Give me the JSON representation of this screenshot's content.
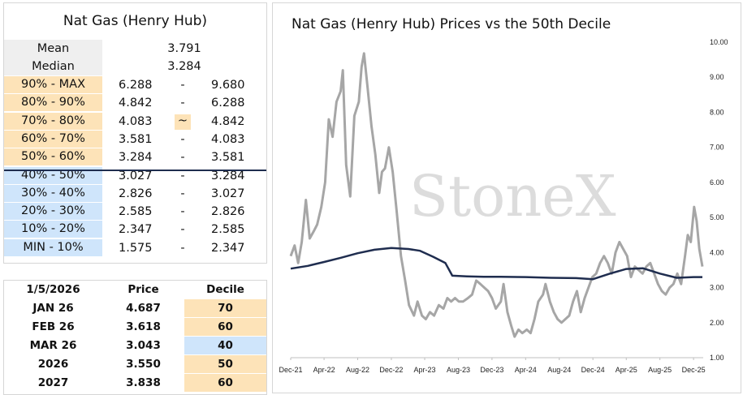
{
  "left_table": {
    "title": "Nat Gas (Henry Hub)",
    "stats": [
      {
        "label": "Mean",
        "value": "3.791"
      },
      {
        "label": "Median",
        "value": "3.284"
      }
    ],
    "deciles": [
      {
        "label": "90% - MAX",
        "low": "6.288",
        "sep": "-",
        "high": "9.680",
        "zone": "high"
      },
      {
        "label": "80% - 90%",
        "low": "4.842",
        "sep": "-",
        "high": "6.288",
        "zone": "high"
      },
      {
        "label": "70% - 80%",
        "low": "4.083",
        "sep": "~",
        "high": "4.842",
        "zone": "high"
      },
      {
        "label": "60% - 70%",
        "low": "3.581",
        "sep": "-",
        "high": "4.083",
        "zone": "high"
      },
      {
        "label": "50% - 60%",
        "low": "3.284",
        "sep": "-",
        "high": "3.581",
        "zone": "high"
      },
      {
        "label": "40% - 50%",
        "low": "3.027",
        "sep": "-",
        "high": "3.284",
        "zone": "low"
      },
      {
        "label": "30% - 40%",
        "low": "2.826",
        "sep": "-",
        "high": "3.027",
        "zone": "low"
      },
      {
        "label": "20% - 30%",
        "low": "2.585",
        "sep": "-",
        "high": "2.826",
        "zone": "low"
      },
      {
        "label": "10% - 20%",
        "low": "2.347",
        "sep": "-",
        "high": "2.585",
        "zone": "low"
      },
      {
        "label": "MIN - 10%",
        "low": "1.575",
        "sep": "-",
        "high": "2.347",
        "zone": "low"
      }
    ]
  },
  "bottom_table": {
    "headers": [
      "1/5/2026",
      "Price",
      "Decile"
    ],
    "rows": [
      {
        "contract": "JAN 26",
        "price": "4.687",
        "decile": "70",
        "zone": "high"
      },
      {
        "contract": "FEB 26",
        "price": "3.618",
        "decile": "60",
        "zone": "high"
      },
      {
        "contract": "MAR 26",
        "price": "3.043",
        "decile": "40",
        "zone": "low"
      },
      {
        "contract": "2026",
        "price": "3.550",
        "decile": "50",
        "zone": "high"
      },
      {
        "contract": "2027",
        "price": "3.838",
        "decile": "60",
        "zone": "high"
      }
    ]
  },
  "colors": {
    "high_zone": "#fde3b8",
    "low_zone": "#cfe5fb",
    "price_line": "#a6a6a6",
    "decile_line": "#1f2d4f",
    "divider": "#1f2d4f"
  },
  "chart_data": {
    "type": "line",
    "title": "Nat Gas (Henry Hub) Prices vs the 50th Decile",
    "watermark": "StoneX",
    "xlabel": "",
    "ylabel": "",
    "x_ticks": [
      "Dec-21",
      "Apr-22",
      "Aug-22",
      "Dec-22",
      "Apr-23",
      "Aug-23",
      "Dec-23",
      "Apr-24",
      "Aug-24",
      "Dec-24",
      "Apr-25",
      "Aug-25",
      "Dec-25"
    ],
    "y_ticks": [
      "1.00",
      "2.00",
      "3.00",
      "4.00",
      "5.00",
      "6.00",
      "7.00",
      "8.00",
      "9.00",
      "10.00"
    ],
    "ylim": [
      1,
      10
    ],
    "y_axis_side": "right",
    "grid": false,
    "legend": "none",
    "series": [
      {
        "values_by_month": [
          "2021-12",
          "2022-01",
          "2022-02",
          "2022-03",
          "2022-04",
          "2022-05",
          "2022-06",
          "2022-07",
          "2022-08",
          "2022-09",
          "2022-10",
          "2022-11",
          "2022-12",
          "2023-01",
          "2023-02",
          "2023-03",
          "2023-04",
          "2023-05",
          "2023-06",
          "2023-07",
          "2023-08",
          "2023-09",
          "2023-10",
          "2023-11",
          "2023-12",
          "2024-01",
          "2024-02",
          "2024-03",
          "2024-04",
          "2024-05",
          "2024-06",
          "2024-07",
          "2024-08",
          "2024-09",
          "2024-10",
          "2024-11",
          "2024-12",
          "2025-01",
          "2025-02",
          "2025-03",
          "2025-04",
          "2025-05",
          "2025-06",
          "2025-07",
          "2025-08",
          "2025-09",
          "2025-10",
          "2025-11",
          "2025-12",
          "2026-01"
        ],
        "points": [
          [
            "2021-12-01",
            3.9
          ],
          [
            "2021-12-15",
            4.2
          ],
          [
            "2021-12-28",
            3.7
          ],
          [
            "2022-01-10",
            4.3
          ],
          [
            "2022-01-25",
            5.5
          ],
          [
            "2022-02-08",
            4.4
          ],
          [
            "2022-02-22",
            4.6
          ],
          [
            "2022-03-07",
            4.8
          ],
          [
            "2022-03-22",
            5.3
          ],
          [
            "2022-04-05",
            6.0
          ],
          [
            "2022-04-18",
            7.8
          ],
          [
            "2022-05-02",
            7.3
          ],
          [
            "2022-05-16",
            8.3
          ],
          [
            "2022-05-31",
            8.6
          ],
          [
            "2022-06-08",
            9.2
          ],
          [
            "2022-06-20",
            6.5
          ],
          [
            "2022-07-05",
            5.6
          ],
          [
            "2022-07-20",
            7.9
          ],
          [
            "2022-08-05",
            8.3
          ],
          [
            "2022-08-15",
            9.3
          ],
          [
            "2022-08-24",
            9.68
          ],
          [
            "2022-09-06",
            8.7
          ],
          [
            "2022-09-20",
            7.6
          ],
          [
            "2022-10-04",
            6.8
          ],
          [
            "2022-10-18",
            5.7
          ],
          [
            "2022-10-28",
            6.3
          ],
          [
            "2022-11-08",
            6.4
          ],
          [
            "2022-11-22",
            7.0
          ],
          [
            "2022-12-06",
            6.3
          ],
          [
            "2022-12-20",
            5.2
          ],
          [
            "2023-01-05",
            3.9
          ],
          [
            "2023-01-20",
            3.2
          ],
          [
            "2023-02-03",
            2.5
          ],
          [
            "2023-02-21",
            2.2
          ],
          [
            "2023-03-06",
            2.6
          ],
          [
            "2023-03-22",
            2.2
          ],
          [
            "2023-04-05",
            2.1
          ],
          [
            "2023-04-20",
            2.3
          ],
          [
            "2023-05-05",
            2.2
          ],
          [
            "2023-05-22",
            2.5
          ],
          [
            "2023-06-08",
            2.4
          ],
          [
            "2023-06-22",
            2.7
          ],
          [
            "2023-07-06",
            2.6
          ],
          [
            "2023-07-20",
            2.7
          ],
          [
            "2023-08-03",
            2.6
          ],
          [
            "2023-08-18",
            2.6
          ],
          [
            "2023-09-05",
            2.7
          ],
          [
            "2023-09-20",
            2.8
          ],
          [
            "2023-10-05",
            3.2
          ],
          [
            "2023-10-20",
            3.1
          ],
          [
            "2023-11-03",
            3.0
          ],
          [
            "2023-11-17",
            2.9
          ],
          [
            "2023-12-01",
            2.7
          ],
          [
            "2023-12-15",
            2.4
          ],
          [
            "2024-01-02",
            2.6
          ],
          [
            "2024-01-12",
            3.1
          ],
          [
            "2024-01-26",
            2.3
          ],
          [
            "2024-02-09",
            1.9
          ],
          [
            "2024-02-21",
            1.6
          ],
          [
            "2024-03-06",
            1.8
          ],
          [
            "2024-03-20",
            1.7
          ],
          [
            "2024-04-05",
            1.8
          ],
          [
            "2024-04-19",
            1.7
          ],
          [
            "2024-05-03",
            2.1
          ],
          [
            "2024-05-17",
            2.6
          ],
          [
            "2024-06-03",
            2.8
          ],
          [
            "2024-06-12",
            3.1
          ],
          [
            "2024-06-28",
            2.6
          ],
          [
            "2024-07-12",
            2.3
          ],
          [
            "2024-07-26",
            2.1
          ],
          [
            "2024-08-09",
            2.0
          ],
          [
            "2024-08-23",
            2.1
          ],
          [
            "2024-09-06",
            2.2
          ],
          [
            "2024-09-20",
            2.6
          ],
          [
            "2024-10-04",
            2.9
          ],
          [
            "2024-10-18",
            2.3
          ],
          [
            "2024-11-01",
            2.7
          ],
          [
            "2024-11-15",
            3.0
          ],
          [
            "2024-11-29",
            3.3
          ],
          [
            "2024-12-13",
            3.4
          ],
          [
            "2024-12-27",
            3.7
          ],
          [
            "2025-01-10",
            3.9
          ],
          [
            "2025-01-24",
            3.7
          ],
          [
            "2025-02-07",
            3.4
          ],
          [
            "2025-02-21",
            4.0
          ],
          [
            "2025-03-07",
            4.3
          ],
          [
            "2025-03-21",
            4.1
          ],
          [
            "2025-04-04",
            3.9
          ],
          [
            "2025-04-18",
            3.3
          ],
          [
            "2025-05-02",
            3.6
          ],
          [
            "2025-05-16",
            3.5
          ],
          [
            "2025-05-30",
            3.4
          ],
          [
            "2025-06-13",
            3.6
          ],
          [
            "2025-06-27",
            3.7
          ],
          [
            "2025-07-11",
            3.4
          ],
          [
            "2025-07-25",
            3.1
          ],
          [
            "2025-08-08",
            2.9
          ],
          [
            "2025-08-22",
            2.8
          ],
          [
            "2025-09-05",
            3.0
          ],
          [
            "2025-09-19",
            3.1
          ],
          [
            "2025-10-03",
            3.4
          ],
          [
            "2025-10-17",
            3.1
          ],
          [
            "2025-10-31",
            3.9
          ],
          [
            "2025-11-10",
            4.5
          ],
          [
            "2025-11-21",
            4.3
          ],
          [
            "2025-12-03",
            5.3
          ],
          [
            "2025-12-12",
            4.9
          ],
          [
            "2025-12-22",
            4.1
          ],
          [
            "2026-01-02",
            3.6
          ]
        ]
      },
      {
        "points": [
          [
            "2021-12-01",
            3.54
          ],
          [
            "2022-02-01",
            3.62
          ],
          [
            "2022-04-01",
            3.73
          ],
          [
            "2022-06-01",
            3.85
          ],
          [
            "2022-08-01",
            3.98
          ],
          [
            "2022-10-01",
            4.08
          ],
          [
            "2022-12-01",
            4.13
          ],
          [
            "2023-02-01",
            4.1
          ],
          [
            "2023-03-15",
            4.05
          ],
          [
            "2023-05-01",
            3.88
          ],
          [
            "2023-06-15",
            3.7
          ],
          [
            "2023-07-10",
            3.34
          ],
          [
            "2023-09-01",
            3.32
          ],
          [
            "2023-11-01",
            3.31
          ],
          [
            "2024-01-01",
            3.31
          ],
          [
            "2024-04-01",
            3.3
          ],
          [
            "2024-07-01",
            3.28
          ],
          [
            "2024-10-01",
            3.27
          ],
          [
            "2024-12-01",
            3.24
          ],
          [
            "2025-02-01",
            3.4
          ],
          [
            "2025-04-01",
            3.53
          ],
          [
            "2025-06-01",
            3.55
          ],
          [
            "2025-08-01",
            3.4
          ],
          [
            "2025-10-01",
            3.28
          ],
          [
            "2025-12-01",
            3.3
          ],
          [
            "2026-01-02",
            3.3
          ]
        ]
      }
    ]
  }
}
